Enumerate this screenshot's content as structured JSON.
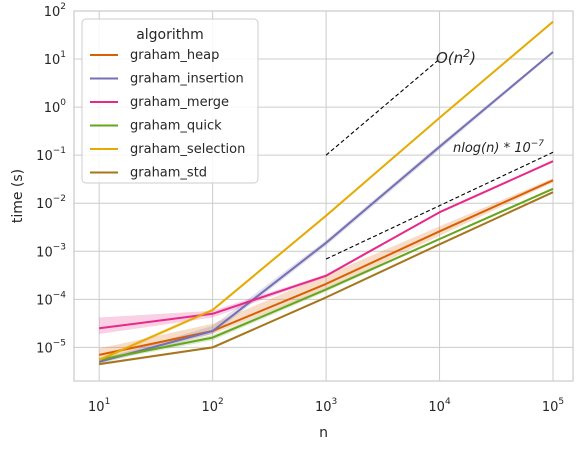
{
  "chart_data": {
    "type": "line",
    "xlabel": "n",
    "ylabel": "time (s)",
    "xscale": "log",
    "yscale": "log",
    "xlim": [
      6,
      150000
    ],
    "ylim": [
      2e-06,
      100
    ],
    "grid": true,
    "x": [
      10,
      100,
      1000,
      10000,
      100000
    ],
    "x_ticks": [
      {
        "value": 10,
        "base": "10",
        "exp": "1"
      },
      {
        "value": 100,
        "base": "10",
        "exp": "2"
      },
      {
        "value": 1000,
        "base": "10",
        "exp": "3"
      },
      {
        "value": 10000,
        "base": "10",
        "exp": "4"
      },
      {
        "value": 100000,
        "base": "10",
        "exp": "5"
      }
    ],
    "y_ticks": [
      {
        "value": 1e-05,
        "base": "10",
        "exp": "−5"
      },
      {
        "value": 0.0001,
        "base": "10",
        "exp": "−4"
      },
      {
        "value": 0.001,
        "base": "10",
        "exp": "−3"
      },
      {
        "value": 0.01,
        "base": "10",
        "exp": "−2"
      },
      {
        "value": 0.1,
        "base": "10",
        "exp": "−1"
      },
      {
        "value": 1,
        "base": "10",
        "exp": "0"
      },
      {
        "value": 10,
        "base": "10",
        "exp": "1"
      },
      {
        "value": 100,
        "base": "10",
        "exp": "2"
      }
    ],
    "legend": {
      "title": "algorithm",
      "placement": "top-left"
    },
    "series": [
      {
        "name": "graham_heap",
        "color": "#d95f02",
        "values": [
          7e-06,
          2.2e-05,
          0.00021,
          0.0026,
          0.03
        ],
        "lower": [
          5.5e-06,
          1.9e-05,
          0.00016,
          0.0021,
          0.027
        ],
        "upper": [
          9.5e-06,
          3.1e-05,
          0.00032,
          0.0033,
          0.033
        ]
      },
      {
        "name": "graham_insertion",
        "color": "#7570b3",
        "values": [
          5e-06,
          2.2e-05,
          0.0015,
          0.15,
          14
        ],
        "lower": [
          4.5e-06,
          1.9e-05,
          0.0013,
          0.13,
          13
        ],
        "upper": [
          5.5e-06,
          2.8e-05,
          0.0017,
          0.17,
          15
        ]
      },
      {
        "name": "graham_merge",
        "color": "#e7298a",
        "values": [
          2.5e-05,
          5e-05,
          0.00031,
          0.0065,
          0.075
        ],
        "lower": [
          1.9e-05,
          4.2e-05,
          0.00029,
          0.0062,
          0.072
        ],
        "upper": [
          4.2e-05,
          5.8e-05,
          0.00033,
          0.0068,
          0.078
        ]
      },
      {
        "name": "graham_quick",
        "color": "#66a61e",
        "values": [
          5.5e-06,
          1.6e-05,
          0.00016,
          0.0018,
          0.02
        ],
        "lower": [
          5e-06,
          1.4e-05,
          0.000145,
          0.0017,
          0.019
        ],
        "upper": [
          6e-06,
          1.8e-05,
          0.000175,
          0.0019,
          0.021
        ]
      },
      {
        "name": "graham_selection",
        "color": "#e6ab02",
        "values": [
          5.5e-06,
          6e-05,
          0.0055,
          0.6,
          60
        ],
        "lower": [
          5e-06,
          5.5e-05,
          0.0052,
          0.57,
          57
        ],
        "upper": [
          6e-06,
          6.5e-05,
          0.0058,
          0.63,
          63
        ]
      },
      {
        "name": "graham_std",
        "color": "#a6761d",
        "values": [
          4.5e-06,
          1e-05,
          0.00011,
          0.0014,
          0.017
        ],
        "lower": [
          4.2e-06,
          9.5e-06,
          0.000105,
          0.00135,
          0.0165
        ],
        "upper": [
          4.8e-06,
          1.05e-05,
          0.000115,
          0.00145,
          0.0175
        ]
      }
    ],
    "reference_lines": [
      {
        "label_base": "O(n",
        "label_exp": "2",
        "label_end": ")",
        "x": [
          1000,
          10000
        ],
        "y": [
          0.1,
          10
        ]
      },
      {
        "label_base": "nlog(n) * 10",
        "label_exp": "−7",
        "label_end": "",
        "x": [
          1000,
          100000
        ],
        "y": [
          0.00069,
          0.115
        ]
      }
    ]
  }
}
